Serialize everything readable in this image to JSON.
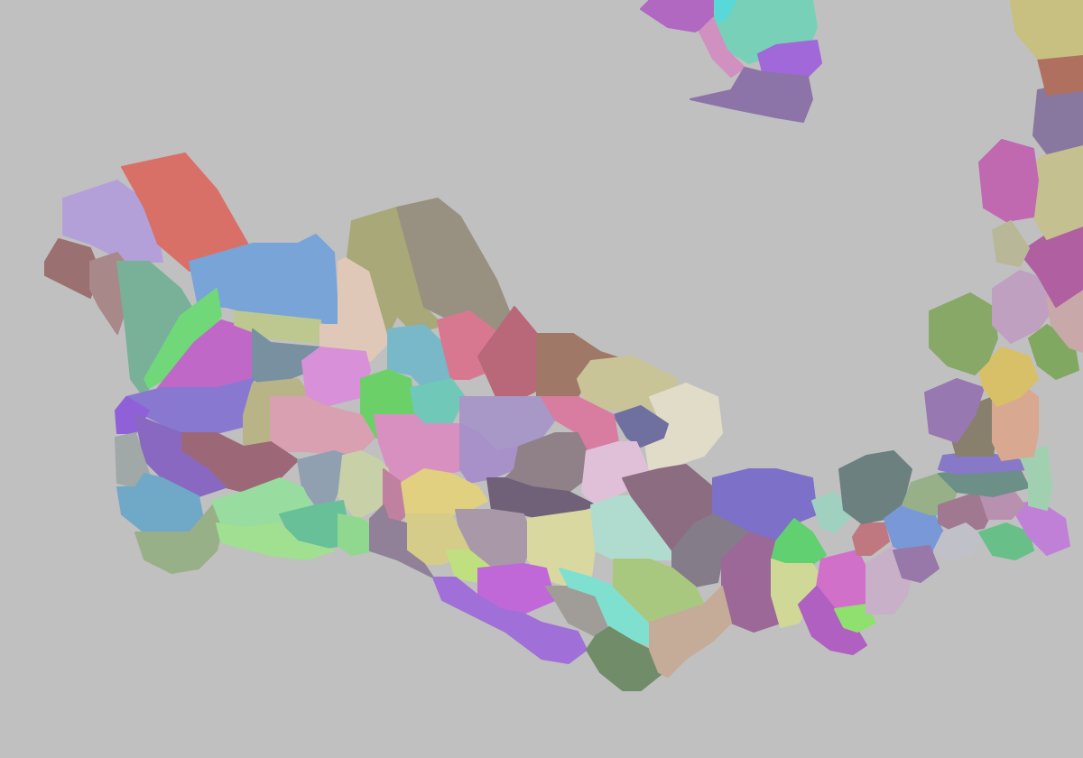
{
  "map": {
    "background": "#c0c0c0",
    "region_colors": [
      "#b4a0d8",
      "#d87068",
      "#9a7070",
      "#a88888",
      "#78b098",
      "#78a4d8",
      "#70d878",
      "#c068c8",
      "#bcc890",
      "#e0c8b8",
      "#a8a878",
      "#989080",
      "#7890a0",
      "#8878d0",
      "#9060d8",
      "#b8b488",
      "#d890d8",
      "#78b8c8",
      "#d87890",
      "#b86878",
      "#a07868",
      "#c8c498",
      "#e0dcc8",
      "#7070a0",
      "#6cd068",
      "#70c8b8",
      "#d8a0b0",
      "#a898c8",
      "#d87ca0",
      "#d890c0",
      "#9c6878",
      "#8868c0",
      "#a0a8a8",
      "#a890c8",
      "#908088",
      "#e0c0d8",
      "#90a0b0",
      "#c8d0a8",
      "#70a8c8",
      "#98b088",
      "#98dca0",
      "#68c098",
      "#90d890",
      "#a0e090",
      "#c080a0",
      "#e0d080",
      "#706078",
      "#a898a8",
      "#d8d8a0",
      "#b0dcd0",
      "#8c6c80",
      "#7c70c8",
      "#847c88",
      "#9c6898",
      "#d4cc88",
      "#908098",
      "#c0e080",
      "#c068d8",
      "#a070d8",
      "#a09c98",
      "#80e0d0",
      "#a8c880",
      "#708c68",
      "#c4ac98",
      "#60d070",
      "#d0d898",
      "#d070c8",
      "#b060c0",
      "#90e070",
      "#a0d0c0",
      "#c07880",
      "#6c8080",
      "#c8b0c8",
      "#7898d8",
      "#9878a8",
      "#98b088",
      "#a07890",
      "#c0c0c8",
      "#68c088",
      "#c080d8",
      "#b890b0",
      "#6c9088",
      "#8878c8",
      "#a0d0b0",
      "#88806c",
      "#9878b0",
      "#d8a890",
      "#d8c068",
      "#88a868",
      "#80a860",
      "#c0a0c0",
      "#c8a8a8",
      "#b060a0",
      "#c4c090",
      "#c068b0",
      "#b8b898",
      "#8878a0",
      "#b07060",
      "#c8c080",
      "#78d0b8",
      "#58d8d8",
      "#b068c0",
      "#d090c0",
      "#a068d8",
      "#8c74a8"
    ]
  }
}
